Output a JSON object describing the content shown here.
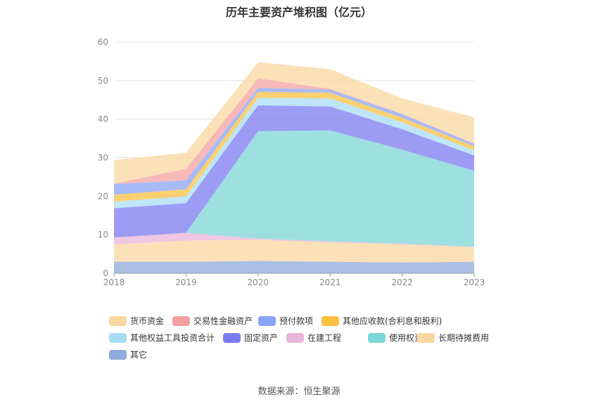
{
  "title": "历年主要资产堆积图（亿元）",
  "source": "数据来源：恒生聚源",
  "chart_data": {
    "type": "area",
    "stacked": true,
    "x": [
      "2018",
      "2019",
      "2020",
      "2021",
      "2022",
      "2023"
    ],
    "y_ticks": [
      "0",
      "10",
      "20",
      "30",
      "40",
      "50",
      "60"
    ],
    "ylim": [
      0,
      60
    ],
    "grid": "horizontal",
    "legend_position": "bottom",
    "series": [
      {
        "name": "其它",
        "color": "#8FAADC",
        "values": [
          3.0,
          3.0,
          3.2,
          3.0,
          2.8,
          3.0
        ]
      },
      {
        "name": "长期待摊费用",
        "color": "#FAD7A0",
        "values": [
          4.5,
          5.5,
          5.5,
          5.0,
          4.7,
          3.8
        ]
      },
      {
        "name": "在建工程",
        "color": "#E8B4D8",
        "values": [
          1.8,
          2.0,
          0.3,
          0.3,
          0.2,
          0.1
        ]
      },
      {
        "name": "使用权资产",
        "color": "#7ED6D6",
        "values": [
          0,
          0,
          27.9,
          28.8,
          24.4,
          19.7
        ]
      },
      {
        "name": "固定资产",
        "color": "#7B7BF0",
        "values": [
          7.6,
          7.7,
          6.7,
          6.2,
          5.3,
          4.0
        ]
      },
      {
        "name": "其他权益工具投资合计",
        "color": "#A8DCF5",
        "values": [
          1.7,
          1.8,
          1.9,
          2.1,
          1.8,
          1.3
        ]
      },
      {
        "name": "其他应收款(合利息和股利)",
        "color": "#FAC040",
        "values": [
          1.8,
          1.8,
          1.6,
          1.5,
          1.2,
          1.1
        ]
      },
      {
        "name": "预付款项",
        "color": "#8AA4F5",
        "values": [
          2.8,
          2.3,
          1.0,
          0.8,
          0.9,
          0.6
        ]
      },
      {
        "name": "交易性金融资产",
        "color": "#F4A0A0",
        "values": [
          0.1,
          3.0,
          2.5,
          0.2,
          0.1,
          0.1
        ]
      },
      {
        "name": "货币资金",
        "color": "#FAD7A0",
        "values": [
          6.1,
          4.2,
          4.2,
          5.1,
          4.0,
          6.8
        ]
      }
    ],
    "legend_order": [
      "货币资金",
      "交易性金融资产",
      "预付款项",
      "其他应收款(合利息和股利)",
      "其他权益工具投资合计",
      "固定资产",
      "在建工程",
      "使用权资产",
      "长期待摊费用",
      "其它"
    ],
    "legend_colors": {
      "货币资金": "#FAD7A0",
      "交易性金融资产": "#F4A0A0",
      "预付款项": "#8AA4F5",
      "其他应收款(合利息和股利)": "#FAC040",
      "其他权益工具投资合计": "#A8DCF5",
      "固定资产": "#7B7BF0",
      "在建工程": "#E8B4D8",
      "使用权资产": "#7ED6D6",
      "长期待摊费用": "#FAD7A0",
      "其它": "#8FAADC"
    }
  }
}
